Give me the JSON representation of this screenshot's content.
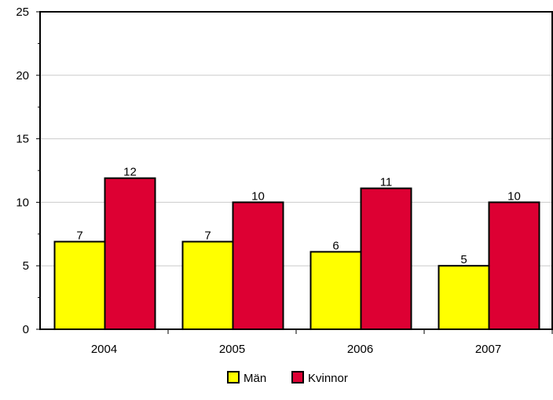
{
  "chart_data": {
    "type": "bar",
    "title": "",
    "xlabel": "",
    "ylabel": "",
    "categories": [
      "2004",
      "2005",
      "2006",
      "2007"
    ],
    "series": [
      {
        "name": "Män",
        "values": [
          6.9,
          6.9,
          6.1,
          5.0
        ],
        "labels": [
          "7",
          "7",
          "6",
          "5"
        ],
        "color": "#ffff00"
      },
      {
        "name": "Kvinnor",
        "values": [
          11.9,
          10.0,
          11.1,
          10.0
        ],
        "labels": [
          "12",
          "10",
          "11",
          "10"
        ],
        "color": "#dd0033"
      }
    ],
    "ylim": [
      0,
      25
    ],
    "yticks": [
      "0",
      "5",
      "10",
      "15",
      "20",
      "25"
    ],
    "grid": true,
    "legend": "bottom-center"
  }
}
